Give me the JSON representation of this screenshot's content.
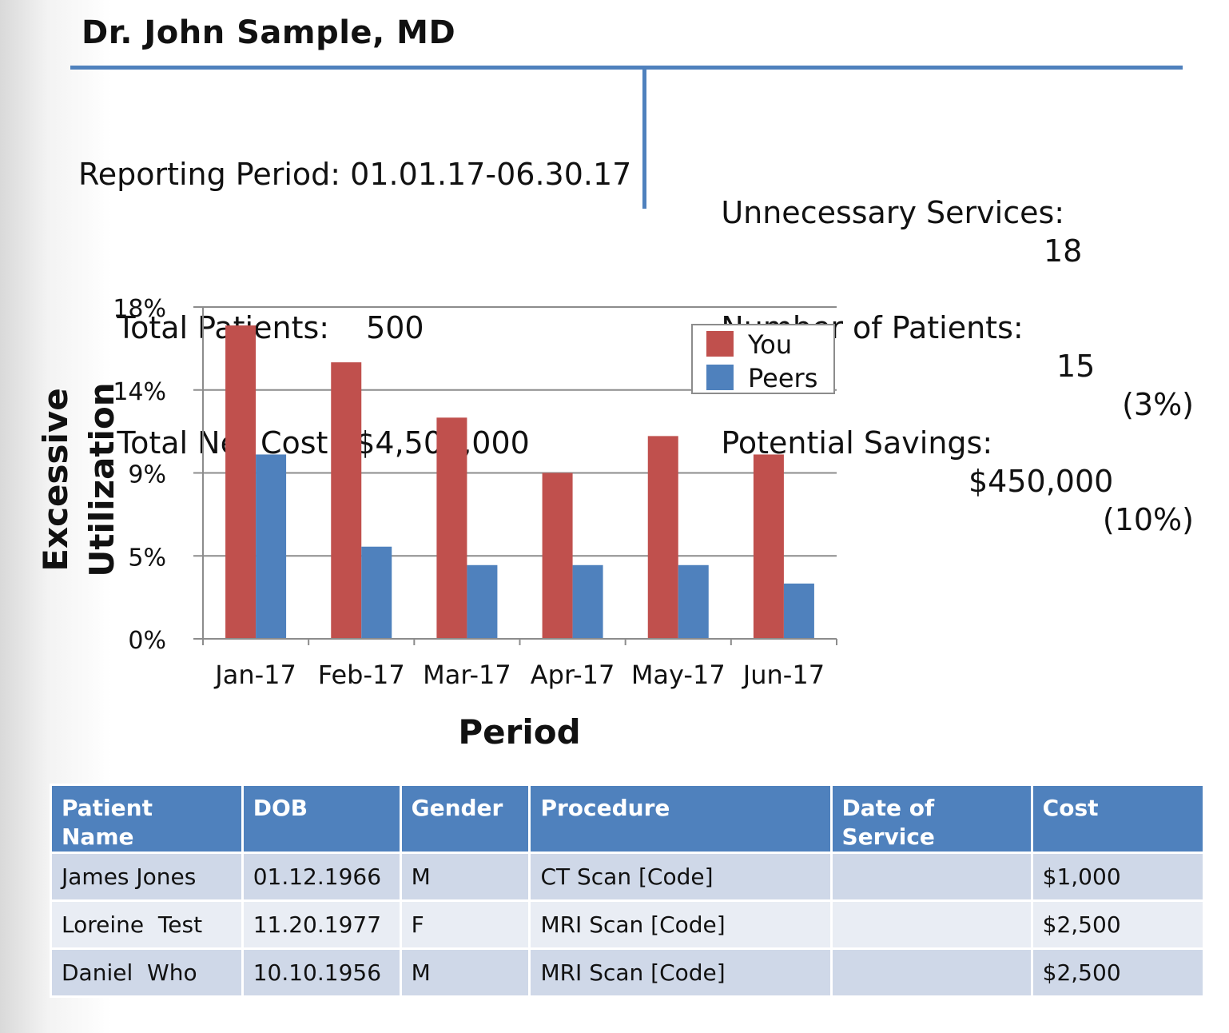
{
  "header": {
    "doctor_name": "Dr. John Sample, MD"
  },
  "summary": {
    "reporting_period": "Reporting Period: 01.01.17-06.30.17",
    "total_patients_label": "Total Patients:",
    "total_patients_value": "500",
    "total_net_cost_label": "Total Net Cost:",
    "total_net_cost_value": "$4,500,000",
    "unnecessary_services_label": "Unnecessary Services:",
    "unnecessary_services_value": "18",
    "number_of_patients_label": "Number of Patients:",
    "number_of_patients_value": "15",
    "number_of_patients_pct": "(3%)",
    "potential_savings_label": "Potential Savings:",
    "potential_savings_value": "$450,000",
    "potential_savings_pct": "(10%)"
  },
  "chart_data": {
    "type": "bar",
    "title": "",
    "xlabel": "Period",
    "ylabel": "Excessive Utilization",
    "categories": [
      "Jan-17",
      "Feb-17",
      "Mar-17",
      "Apr-17",
      "May-17",
      "Jun-17"
    ],
    "series": [
      {
        "name": "You",
        "color": "#c0504d",
        "values": [
          17,
          15,
          12,
          9,
          11,
          10
        ]
      },
      {
        "name": "Peers",
        "color": "#4f81bd",
        "values": [
          10,
          5,
          4,
          4,
          4,
          3
        ]
      }
    ],
    "ylim": [
      0,
      18
    ],
    "yticks": [
      0,
      4.5,
      9,
      13.5,
      18
    ],
    "ytick_labels": [
      "0%",
      "5%",
      "9%",
      "14%",
      "18%"
    ],
    "grid": true,
    "legend_position": "top-right"
  },
  "table": {
    "headers": [
      "Patient Name",
      "DOB",
      "Gender",
      "Procedure",
      "Date of Service",
      "Cost"
    ],
    "rows": [
      [
        "James Jones",
        "01.12.1966",
        "M",
        "CT Scan [Code]",
        "",
        "$1,000"
      ],
      [
        "Loreine  Test",
        "11.20.1977",
        "F",
        "MRI Scan [Code]",
        "",
        "$2,500"
      ],
      [
        "Daniel  Who",
        "10.10.1956",
        "M",
        "MRI Scan [Code]",
        "",
        "$2,500"
      ]
    ]
  }
}
